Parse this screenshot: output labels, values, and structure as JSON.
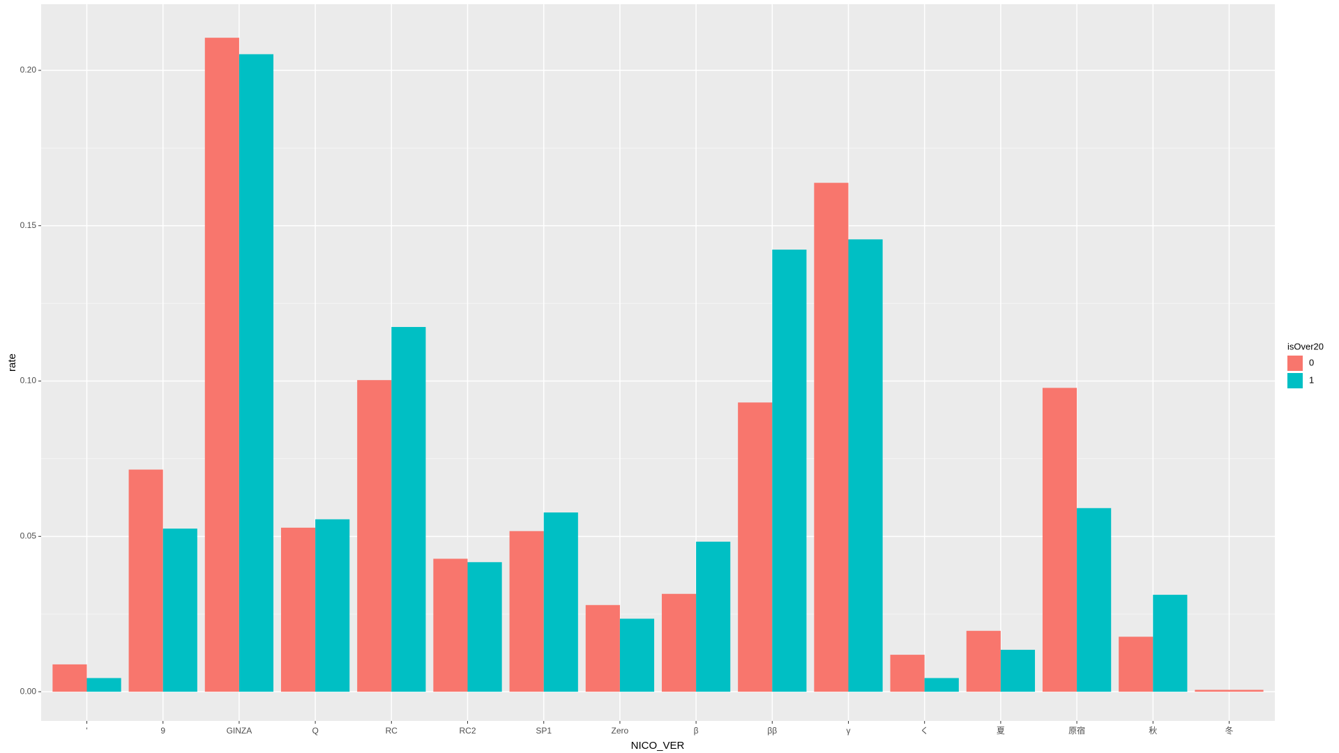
{
  "chart_data": {
    "type": "bar",
    "x_label": "NICO_VER",
    "y_label": "rate",
    "categories": [
      "'",
      "9",
      "GINZA",
      "Q",
      "RC",
      "RC2",
      "SP1",
      "Zero",
      "β",
      "ββ",
      "γ",
      "く",
      "夏",
      "原宿",
      "秋",
      "冬"
    ],
    "legend_title": "isOver20",
    "series": [
      {
        "name": "0",
        "color": "#F8766D",
        "values": [
          0.0088,
          0.0715,
          0.2105,
          0.0528,
          0.1003,
          0.0428,
          0.0517,
          0.0279,
          0.0315,
          0.0931,
          0.1638,
          0.0119,
          0.0196,
          0.0978,
          0.0177,
          0.0006
        ]
      },
      {
        "name": "1",
        "color": "#00BFC4",
        "values": [
          0.0044,
          0.0525,
          0.2052,
          0.0555,
          0.1174,
          0.0417,
          0.0577,
          0.0235,
          0.0483,
          0.1423,
          0.1456,
          0.0044,
          0.0135,
          0.0591,
          0.0312,
          null
        ]
      }
    ],
    "ylim": [
      -0.0094,
      0.2213
    ],
    "yticks": [
      {
        "value": 0,
        "label": "0.00"
      },
      0.05,
      {
        "value": 0.1,
        "label": "0.10"
      },
      0.15,
      {
        "value": 0.2,
        "label": "0.20"
      }
    ],
    "grid": true,
    "legend": "right"
  }
}
